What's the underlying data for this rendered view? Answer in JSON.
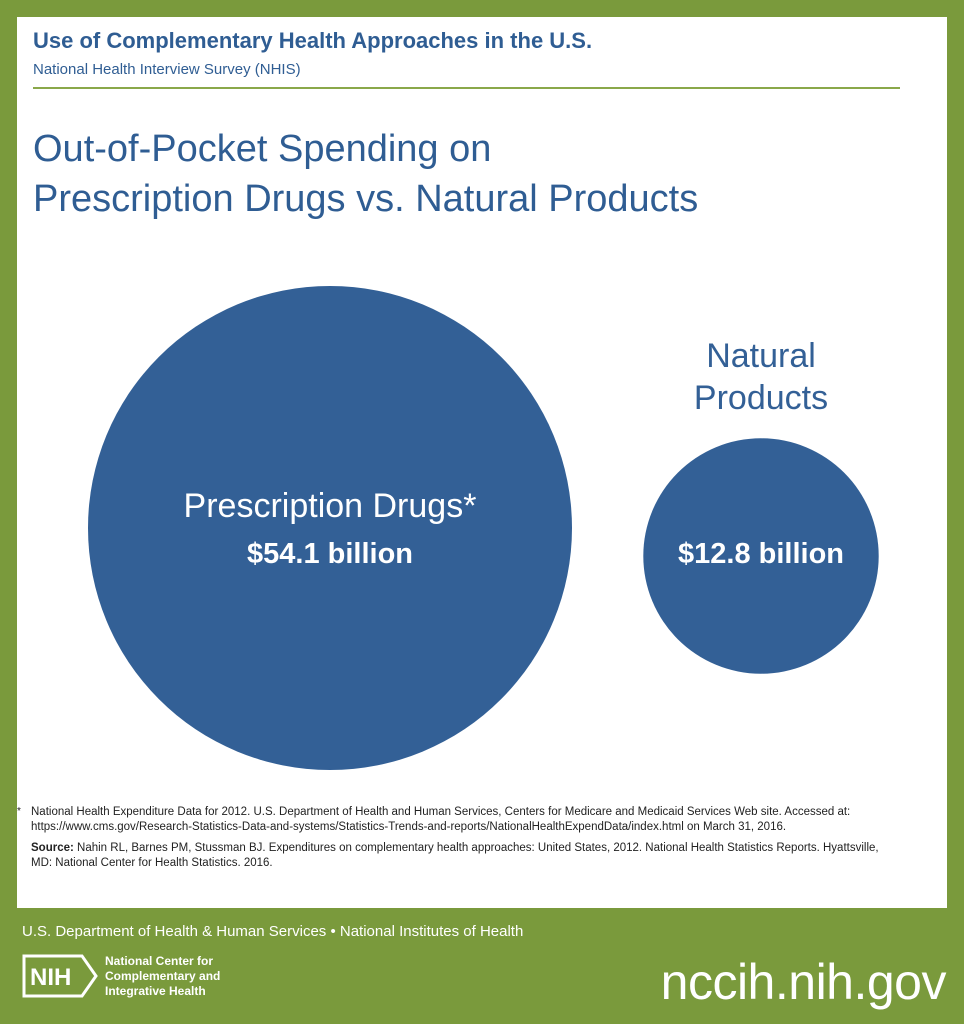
{
  "header": {
    "title": "Use of Complementary Health Approaches in the U.S.",
    "subtitle": "National Health Interview Survey (NHIS)"
  },
  "main_title": {
    "line1": "Out-of-Pocket Spending on",
    "line2": "Prescription Drugs vs. Natural Products"
  },
  "chart_data": {
    "type": "bubble",
    "title": "Out-of-Pocket Spending on Prescription Drugs vs. Natural Products",
    "series": [
      {
        "name": "Prescription Drugs*",
        "value": 54.1,
        "value_label": "$54.1 billion",
        "color": "#336096"
      },
      {
        "name": "Natural Products",
        "value": 12.8,
        "value_label": "$12.8 billion",
        "color": "#336096"
      }
    ]
  },
  "footnote": {
    "marker": "*",
    "text": "National Health Expenditure Data for 2012. U.S. Department of Health and Human Services, Centers for Medicare and Medicaid Services Web site. Accessed at: https://www.cms.gov/Research-Statistics-Data-and-systems/Statistics-Trends-and-reports/NationalHealthExpendData/index.html on March 31, 2016.",
    "source_label": "Source:",
    "source_text": "Nahin RL, Barnes PM, Stussman BJ. Expenditures on complementary health approaches: United States, 2012. National Health Statistics Reports. Hyattsville, MD: National Center for Health Statistics. 2016."
  },
  "footer": {
    "agencies": "U.S. Department of Health & Human Services • National Institutes of Health",
    "logo_text": "NIH",
    "center_line1": "National Center for",
    "center_line2": "Complementary and",
    "center_line3": "Integrative Health",
    "url": "nccih.nih.gov"
  },
  "colors": {
    "background_green": "#7a9a3c",
    "accent_blue": "#2f5d93",
    "bubble_blue": "#336096"
  }
}
